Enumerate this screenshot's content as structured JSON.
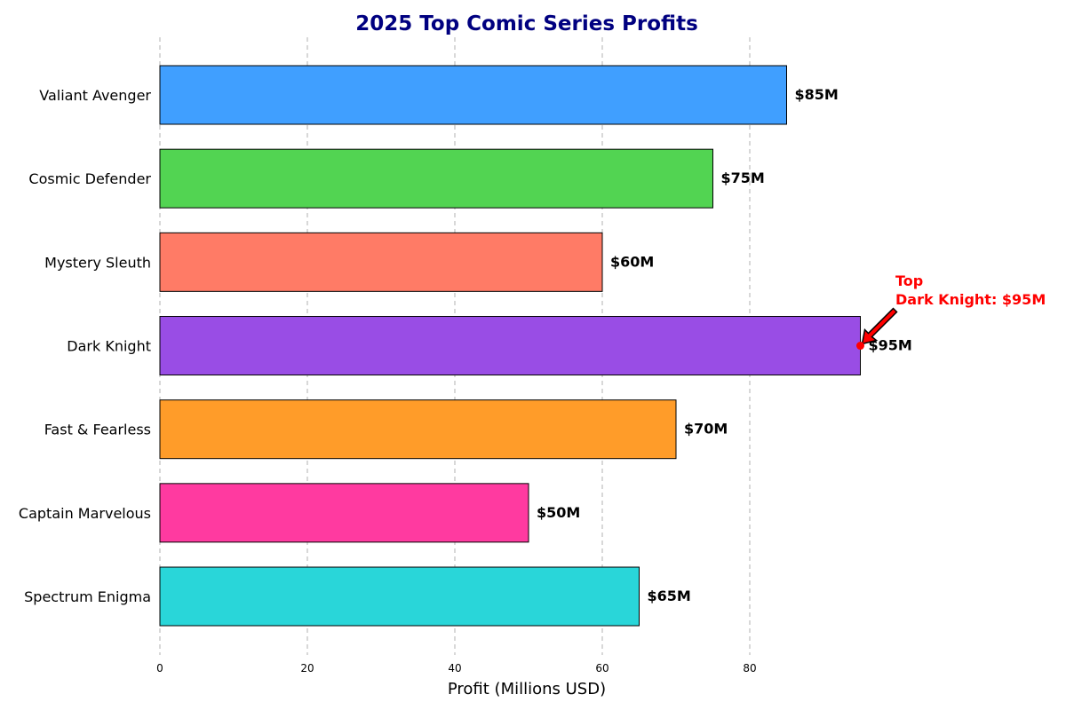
{
  "chart_data": {
    "type": "bar",
    "orientation": "horizontal",
    "title": "2025 Top Comic Series Profits",
    "xlabel": "Profit (Millions USD)",
    "ylabel": "",
    "xlim": [
      0,
      100
    ],
    "xticks": [
      0,
      20,
      40,
      60,
      80
    ],
    "grid": "x-dashed",
    "categories": [
      "Valiant Avenger",
      "Cosmic Defender",
      "Mystery Sleuth",
      "Dark Knight",
      "Fast & Fearless",
      "Captain Marvelous",
      "Spectrum Enigma"
    ],
    "values": [
      85,
      75,
      60,
      95,
      70,
      50,
      65
    ],
    "value_labels": [
      "$85M",
      "$75M",
      "$60M",
      "$95M",
      "$70M",
      "$50M",
      "$65M"
    ],
    "colors": [
      "#409fff",
      "#52d452",
      "#ff7b66",
      "#994de5",
      "#ff9c29",
      "#ff3aa0",
      "#29d6d9"
    ],
    "annotation": {
      "category": "Dark Knight",
      "value": 95,
      "text_line1": "Top",
      "text_line2": "Dark Knight: $95M",
      "color": "#ff0000"
    }
  }
}
